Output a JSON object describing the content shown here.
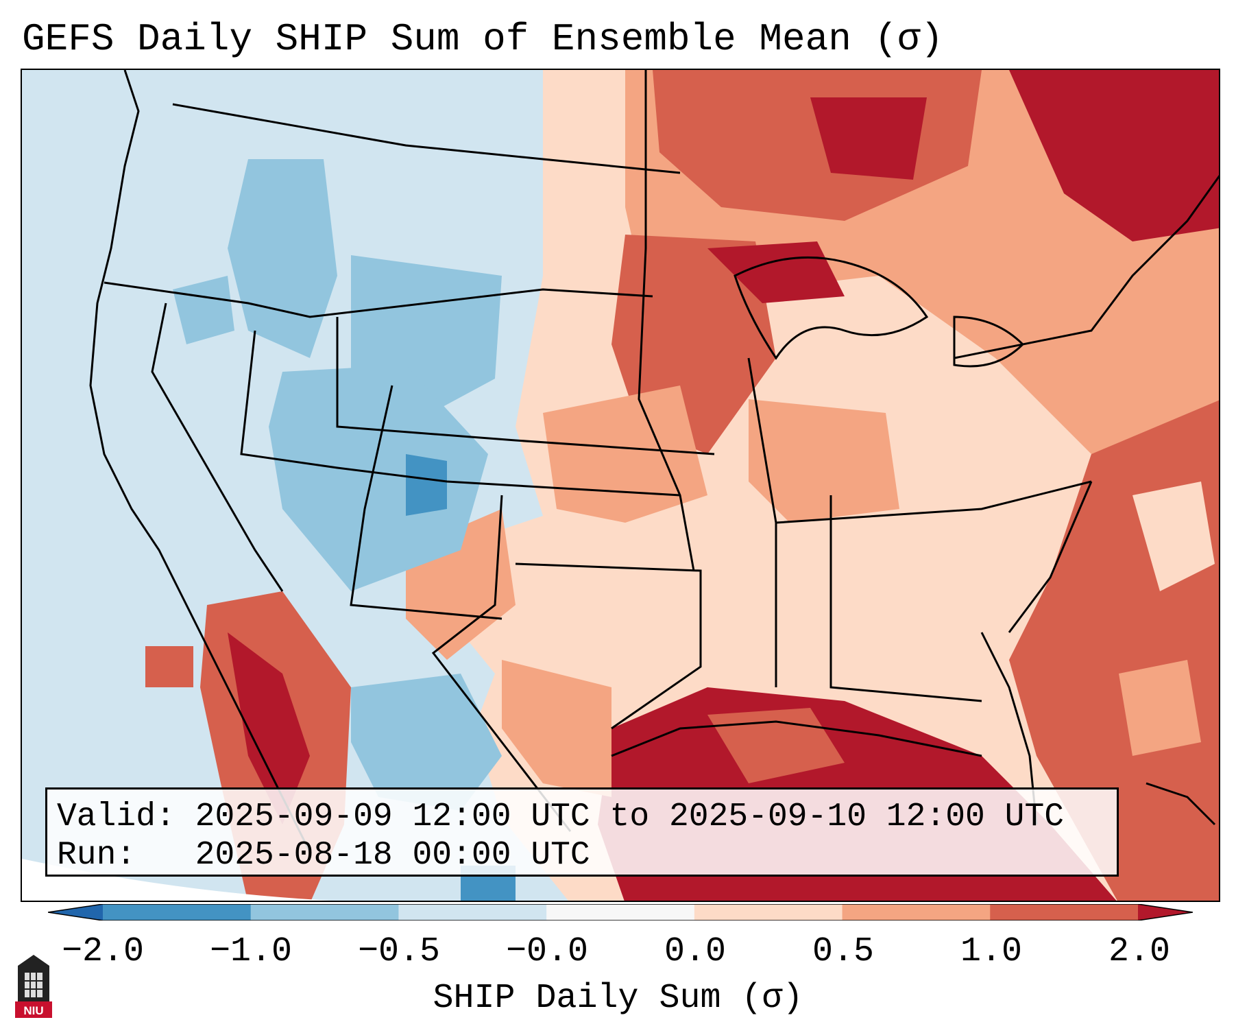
{
  "title": "GEFS Daily SHIP Sum of Ensemble Mean (σ)",
  "info": {
    "valid_label": "Valid:",
    "valid_value": "2025-09-09 12:00 UTC to 2025-09-10 12:00 UTC",
    "run_label": "Run:",
    "run_value": "2025-08-18 00:00 UTC"
  },
  "colorbar": {
    "label": "SHIP Daily Sum (σ)",
    "ticks": [
      "−2.0",
      "−1.0",
      "−0.5",
      "−0.0",
      "0.0",
      "0.5",
      "1.0",
      "2.0"
    ],
    "colors": [
      "#4393c3",
      "#92c5de",
      "#d1e5f0",
      "#f7f7f7",
      "#fddbc7",
      "#f4a582",
      "#d6604d"
    ],
    "under_color": "#2166ac",
    "over_color": "#b2182b"
  },
  "logo": {
    "text": "NIU",
    "color": "#c8102e"
  },
  "colors": {
    "strong_negative": "#4393c3",
    "negative": "#92c5de",
    "weak_negative": "#d1e5f0",
    "weak_positive": "#fddbc7",
    "positive": "#f4a582",
    "strong_positive": "#d6604d",
    "extreme_positive": "#b2182b"
  }
}
